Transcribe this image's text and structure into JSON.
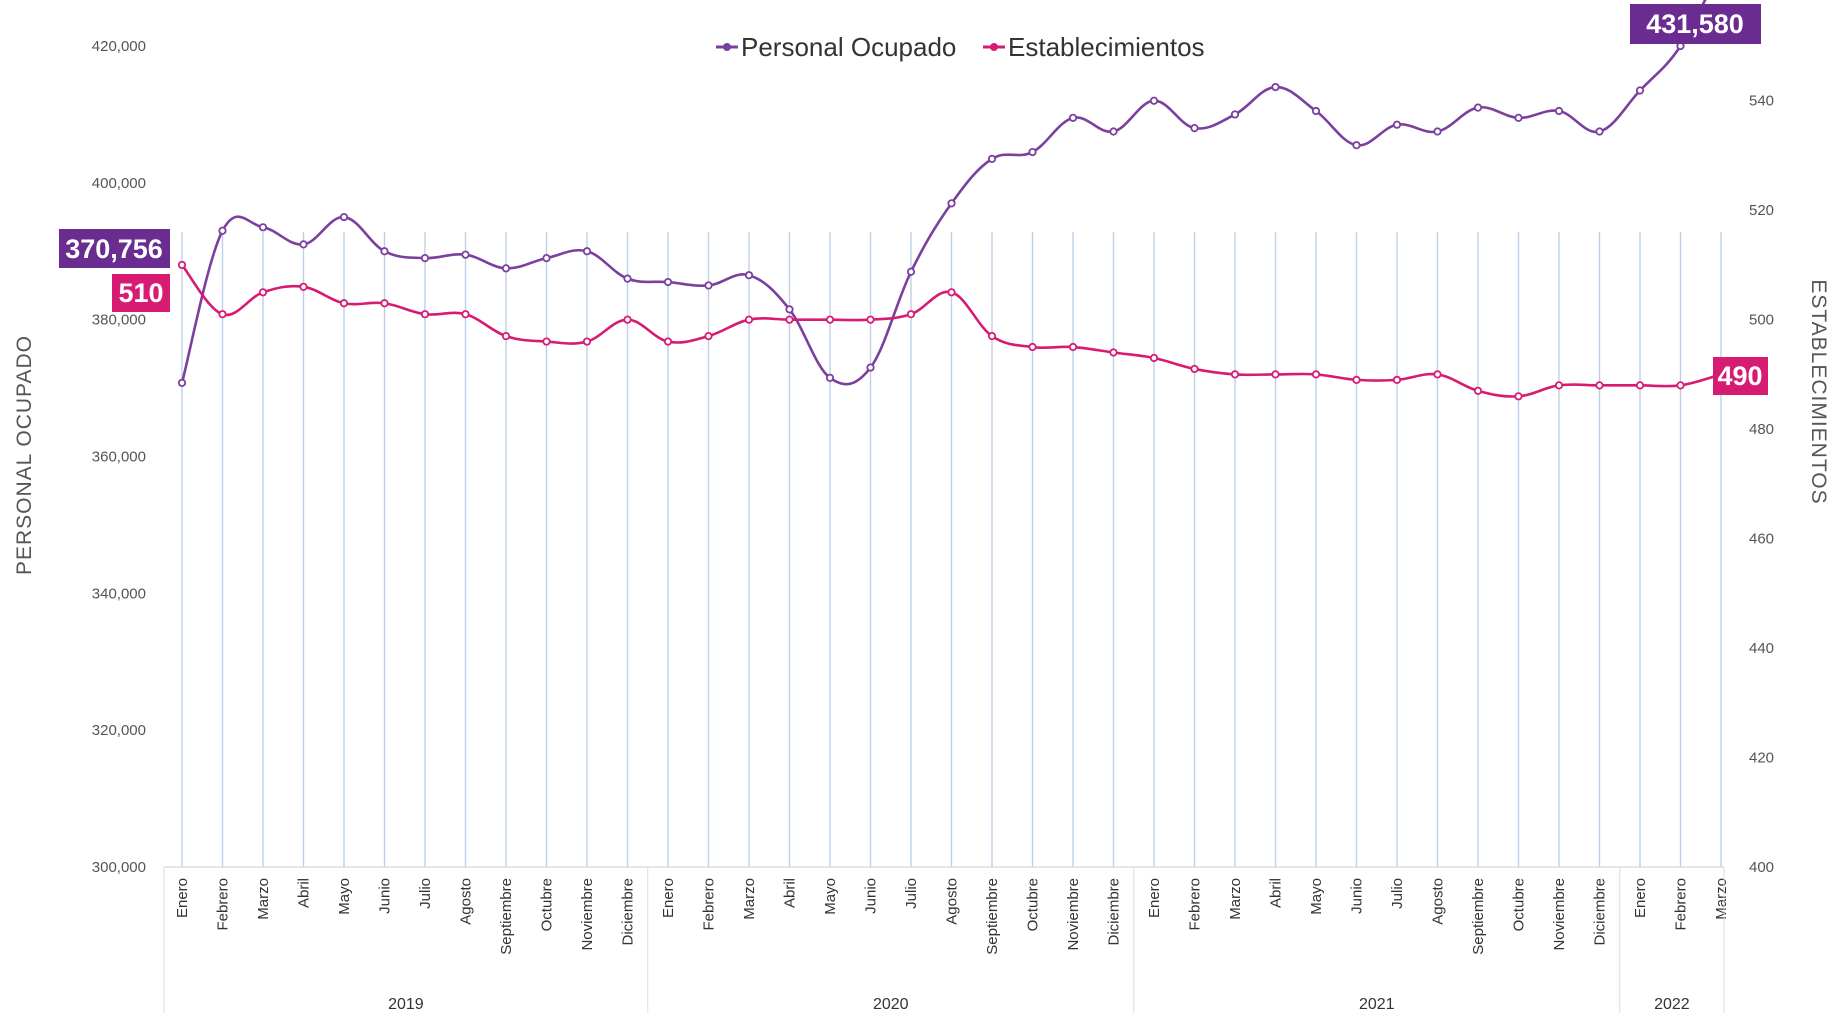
{
  "chart_data": {
    "type": "line",
    "title": "",
    "ylabel_left": "PERSONAL OCUPADO",
    "ylabel_right": "ESTABLECIMIENTOS",
    "y_left_lim": [
      300000,
      420000
    ],
    "y_left_ticks": [
      "300,000",
      "320,000",
      "340,000",
      "360,000",
      "380,000",
      "400,000",
      "420,000"
    ],
    "y_right_lim": [
      400,
      550
    ],
    "y_right_ticks": [
      "400",
      "420",
      "440",
      "460",
      "480",
      "500",
      "520",
      "540"
    ],
    "categories": [
      "Enero",
      "Febrero",
      "Marzo",
      "Abril",
      "Mayo",
      "Junio",
      "Julio",
      "Agosto",
      "Septiembre",
      "Octubre",
      "Noviembre",
      "Diciembre",
      "Enero",
      "Febrero",
      "Marzo",
      "Abril",
      "Mayo",
      "Junio",
      "Julio",
      "Agosto",
      "Septiembre",
      "Octubre",
      "Noviembre",
      "Diciembre",
      "Enero",
      "Febrero",
      "Marzo",
      "Abril",
      "Mayo",
      "Junio",
      "Julio",
      "Agosto",
      "Septiembre",
      "Octubre",
      "Noviembre",
      "Diciembre",
      "Enero",
      "Febrero",
      "Marzo"
    ],
    "years": [
      {
        "label": "2019",
        "start": 0,
        "end": 11
      },
      {
        "label": "2020",
        "start": 12,
        "end": 23
      },
      {
        "label": "2021",
        "start": 24,
        "end": 35
      },
      {
        "label": "2022",
        "start": 36,
        "end": 38
      }
    ],
    "legend_position": "top-center",
    "grid": false,
    "series": [
      {
        "name": "Personal Ocupado",
        "axis": "left",
        "color": "#7b3f9e",
        "values": [
          370756,
          393000,
          393500,
          391000,
          395000,
          390000,
          389000,
          389500,
          387500,
          389000,
          390000,
          386000,
          385500,
          385000,
          386500,
          381500,
          371500,
          373000,
          387000,
          397000,
          403500,
          404500,
          409500,
          407500,
          412000,
          408000,
          410000,
          414000,
          410500,
          405500,
          408500,
          407500,
          411000,
          409500,
          410500,
          407500,
          413500,
          420000,
          431580
        ]
      },
      {
        "name": "Establecimientos",
        "axis": "right",
        "color": "#d81b72",
        "values": [
          510,
          501,
          505,
          506,
          503,
          503,
          501,
          501,
          497,
          496,
          496,
          500,
          496,
          497,
          500,
          500,
          500,
          500,
          501,
          505,
          497,
          495,
          495,
          494,
          493,
          491,
          490,
          490,
          490,
          489,
          489,
          490,
          487,
          486,
          488,
          488,
          488,
          488,
          490
        ]
      }
    ],
    "callouts": {
      "start_personal": "370,756",
      "end_personal": "431,580",
      "start_establecimientos": "510",
      "end_establecimientos": "490"
    }
  }
}
